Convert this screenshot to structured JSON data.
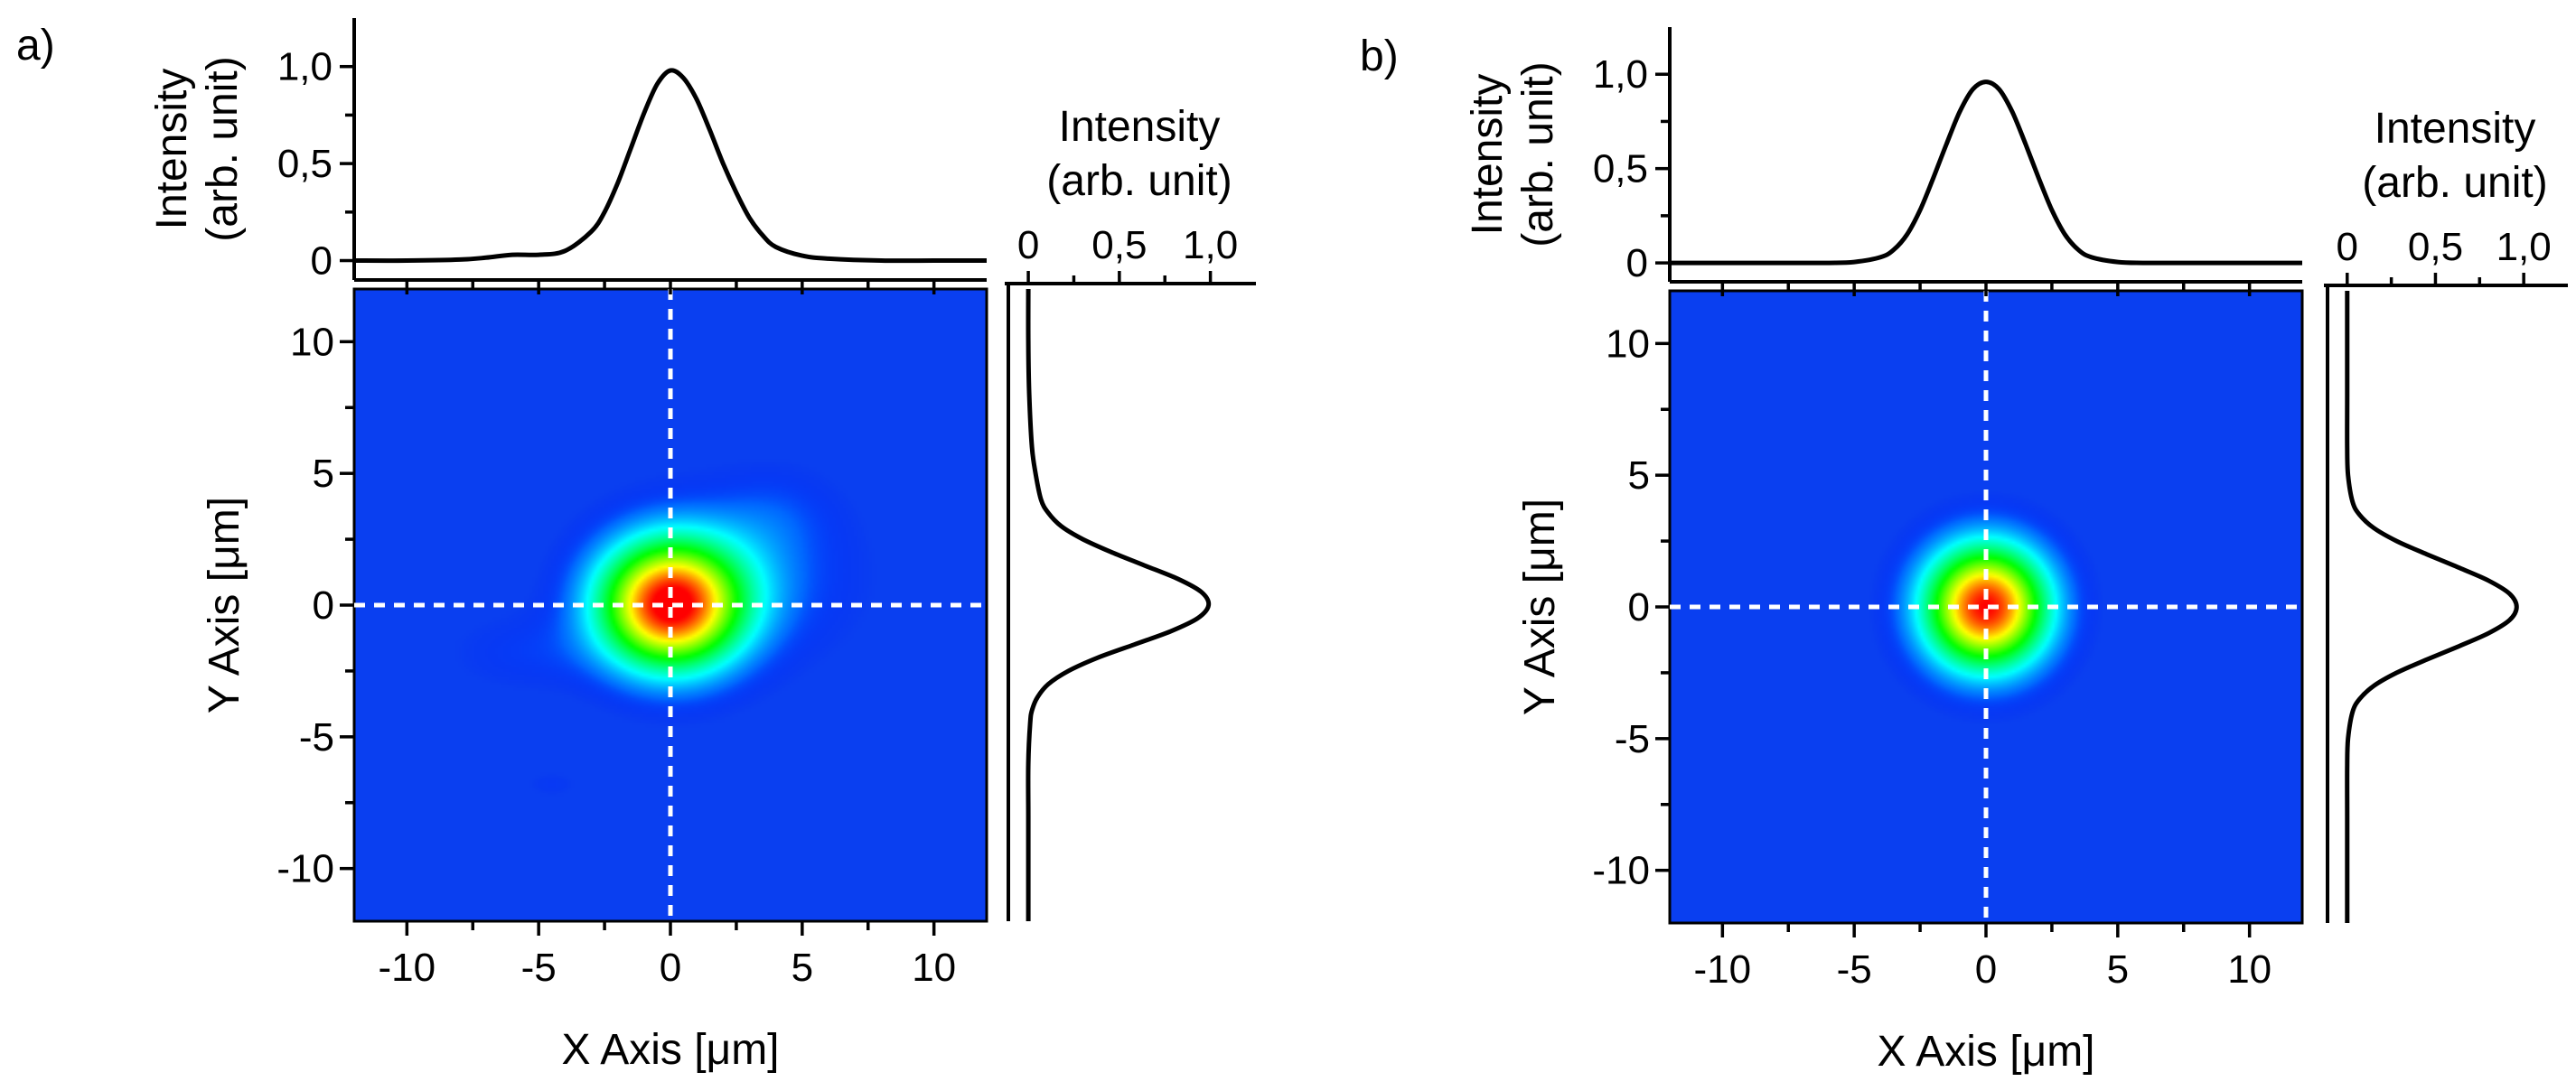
{
  "chart_data": [
    {
      "type": "heatmap",
      "panel_label": "a)",
      "xlabel": "X Axis [μm]",
      "ylabel": "Y Axis [μm]",
      "xlim": [
        -12,
        12
      ],
      "ylim": [
        -12,
        12
      ],
      "x_ticks": [
        -10,
        -5,
        0,
        5,
        10
      ],
      "y_ticks": [
        -10,
        -5,
        0,
        5,
        10
      ],
      "x_tick_labels": [
        "-10",
        "-5",
        "0",
        "5",
        "10"
      ],
      "y_tick_labels": [
        "-10",
        "-5",
        "0",
        "5",
        "10"
      ],
      "colormap": [
        "#0000ff",
        "#00ffff",
        "#00ff00",
        "#ffff00",
        "#ff0000"
      ],
      "background_color": "#0a3ff0",
      "crosshair": {
        "x": 0,
        "y": 0,
        "color": "#ffffff",
        "style": "dashed"
      },
      "spots": [
        {
          "x": 0,
          "y": 0,
          "sigma_x": 1.85,
          "sigma_y": 1.65,
          "amplitude": 1.0
        },
        {
          "x": 2.5,
          "y": 1.0,
          "sigma_x": 2.8,
          "sigma_y": 2.0,
          "amplitude": 0.12
        },
        {
          "x": -5.5,
          "y": -1.8,
          "sigma_x": 2.0,
          "sigma_y": 1.0,
          "amplitude": 0.05
        },
        {
          "x": 4.0,
          "y": 3.5,
          "sigma_x": 1.6,
          "sigma_y": 1.2,
          "amplitude": 0.05
        },
        {
          "x": -4.5,
          "y": -6.8,
          "sigma_x": 0.7,
          "sigma_y": 0.35,
          "amplitude": 0.04
        }
      ],
      "x_profile": {
        "ylabel_line1": "Intensity",
        "ylabel_line2": "(arb. unit)",
        "ylim": [
          -0.1,
          1.25
        ],
        "y_tick_labels": [
          "0",
          "0,5",
          "1,0"
        ],
        "y_ticks": [
          0,
          0.5,
          1.0
        ],
        "x": [
          -12,
          -10,
          -8,
          -7,
          -6,
          -5,
          -4,
          -3,
          -2.5,
          -2,
          -1.5,
          -1,
          -0.5,
          0,
          0.5,
          1,
          1.5,
          2,
          2.5,
          3,
          3.5,
          4,
          5,
          6,
          8,
          10,
          12
        ],
        "y": [
          0.0,
          0.0,
          0.005,
          0.015,
          0.03,
          0.03,
          0.05,
          0.15,
          0.25,
          0.4,
          0.58,
          0.76,
          0.91,
          0.98,
          0.94,
          0.83,
          0.67,
          0.5,
          0.35,
          0.22,
          0.13,
          0.07,
          0.025,
          0.01,
          0.0,
          0.0,
          0.0
        ]
      },
      "y_profile": {
        "title_line1": "Intensity",
        "title_line2": "(arb. unit)",
        "xlim": [
          -0.05,
          1.25
        ],
        "x_tick_labels": [
          "0",
          "0,5",
          "1,0"
        ],
        "x_ticks": [
          0,
          0.5,
          1.0
        ],
        "y": [
          12,
          10,
          8,
          6,
          5,
          4,
          3.5,
          3,
          2.5,
          2,
          1.5,
          1,
          0.5,
          0,
          -0.5,
          -1,
          -1.5,
          -2,
          -2.5,
          -3,
          -3.5,
          -4,
          -4.5,
          -6,
          -8,
          -10,
          -12
        ],
        "value": [
          0.0,
          0.0,
          0.005,
          0.02,
          0.04,
          0.07,
          0.11,
          0.18,
          0.3,
          0.46,
          0.64,
          0.82,
          0.95,
          0.99,
          0.93,
          0.78,
          0.58,
          0.38,
          0.22,
          0.11,
          0.05,
          0.02,
          0.01,
          0.0,
          0.0,
          0.0,
          0.0
        ]
      }
    },
    {
      "type": "heatmap",
      "panel_label": "b)",
      "xlabel": "X Axis [μm]",
      "ylabel": "Y Axis [μm]",
      "xlim": [
        -12,
        12
      ],
      "ylim": [
        -12,
        12
      ],
      "x_ticks": [
        -10,
        -5,
        0,
        5,
        10
      ],
      "y_ticks": [
        -10,
        -5,
        0,
        5,
        10
      ],
      "x_tick_labels": [
        "-10",
        "-5",
        "0",
        "5",
        "10"
      ],
      "y_tick_labels": [
        "-10",
        "-5",
        "0",
        "5",
        "10"
      ],
      "colormap": [
        "#0000ff",
        "#00ffff",
        "#00ff00",
        "#ffff00",
        "#ff0000"
      ],
      "background_color": "#0a3ff0",
      "crosshair": {
        "x": 0,
        "y": 0,
        "color": "#ffffff",
        "style": "dashed"
      },
      "spots": [
        {
          "x": 0,
          "y": 0,
          "sigma_x": 1.6,
          "sigma_y": 1.6,
          "amplitude": 1.0
        }
      ],
      "x_profile": {
        "ylabel_line1": "Intensity",
        "ylabel_line2": "(arb. unit)",
        "ylim": [
          -0.1,
          1.25
        ],
        "y_tick_labels": [
          "0",
          "0,5",
          "1,0"
        ],
        "y_ticks": [
          0,
          0.5,
          1.0
        ],
        "x": [
          -12,
          -10,
          -8,
          -6,
          -5,
          -4,
          -3.5,
          -3,
          -2.5,
          -2,
          -1.5,
          -1,
          -0.5,
          0,
          0.5,
          1,
          1.5,
          2,
          2.5,
          3,
          3.5,
          4,
          5,
          6,
          8,
          10,
          12
        ],
        "y": [
          0.0,
          0.0,
          0.0,
          0.0,
          0.005,
          0.03,
          0.07,
          0.15,
          0.28,
          0.45,
          0.63,
          0.8,
          0.92,
          0.96,
          0.92,
          0.8,
          0.63,
          0.45,
          0.28,
          0.15,
          0.07,
          0.03,
          0.005,
          0.0,
          0.0,
          0.0,
          0.0
        ]
      },
      "y_profile": {
        "title_line1": "Intensity",
        "title_line2": "(arb. unit)",
        "xlim": [
          -0.05,
          1.25
        ],
        "x_tick_labels": [
          "0",
          "0,5",
          "1,0"
        ],
        "x_ticks": [
          0,
          0.5,
          1.0
        ],
        "y": [
          12,
          10,
          8,
          6,
          5,
          4,
          3.5,
          3,
          2.5,
          2,
          1.5,
          1,
          0.5,
          0,
          -0.5,
          -1,
          -1.5,
          -2,
          -2.5,
          -3,
          -3.5,
          -4,
          -5,
          -6,
          -8,
          -10,
          -12
        ],
        "value": [
          0.0,
          0.0,
          0.0,
          0.0,
          0.005,
          0.03,
          0.07,
          0.15,
          0.28,
          0.45,
          0.63,
          0.8,
          0.92,
          0.96,
          0.92,
          0.8,
          0.63,
          0.45,
          0.28,
          0.15,
          0.07,
          0.03,
          0.005,
          0.0,
          0.0,
          0.0,
          0.0
        ]
      }
    }
  ]
}
